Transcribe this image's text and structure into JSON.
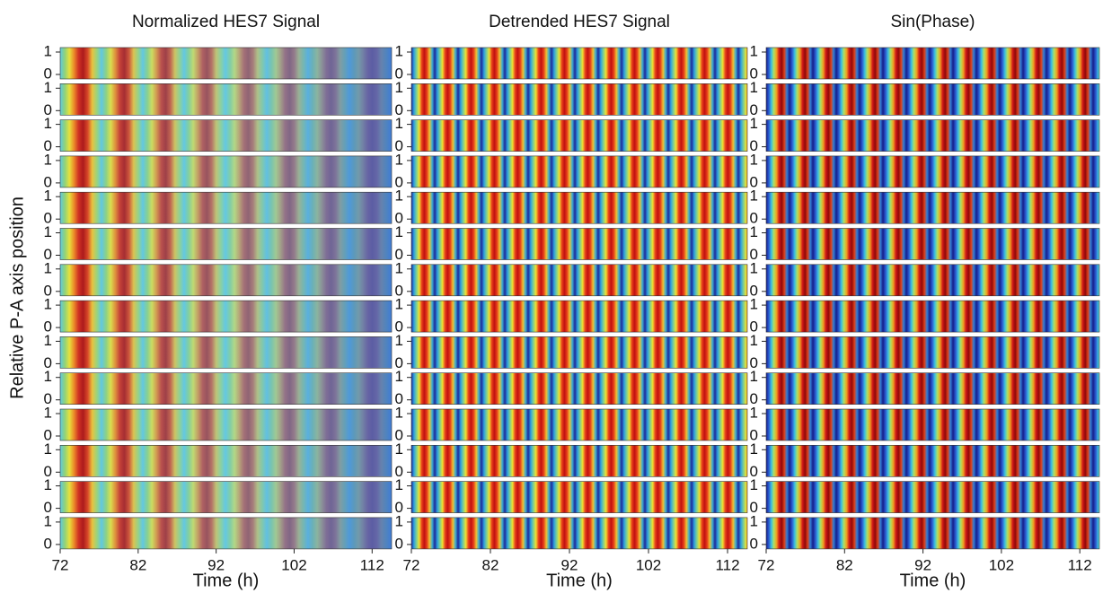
{
  "chart_data": [
    {
      "type": "heatmap",
      "title": "Normalized HES7 Signal",
      "ylabel": "Relative P-A axis position",
      "xlabel": "Time (h)",
      "xlim": [
        72,
        114.5
      ],
      "xticks": [
        72,
        82,
        92,
        102,
        112
      ],
      "ylim": [
        -0.2,
        1.2
      ],
      "yticks": [
        0,
        1
      ]
    },
    {
      "type": "heatmap",
      "title": "Detrended HES7 Signal",
      "xlabel": "Time (h)",
      "xlim": [
        72,
        114.5
      ],
      "xticks": [
        72,
        82,
        92,
        102,
        112
      ],
      "ylim": [
        -0.2,
        1.2
      ],
      "yticks": [
        0,
        1
      ]
    },
    {
      "type": "heatmap",
      "title": "Sin(Phase)",
      "xlabel": "Time (h)",
      "xlim": [
        72,
        114.5
      ],
      "xticks": [
        72,
        82,
        92,
        102,
        112
      ],
      "ylim": [
        -0.2,
        1.2
      ],
      "yticks": [
        0,
        1
      ]
    }
  ]
}
